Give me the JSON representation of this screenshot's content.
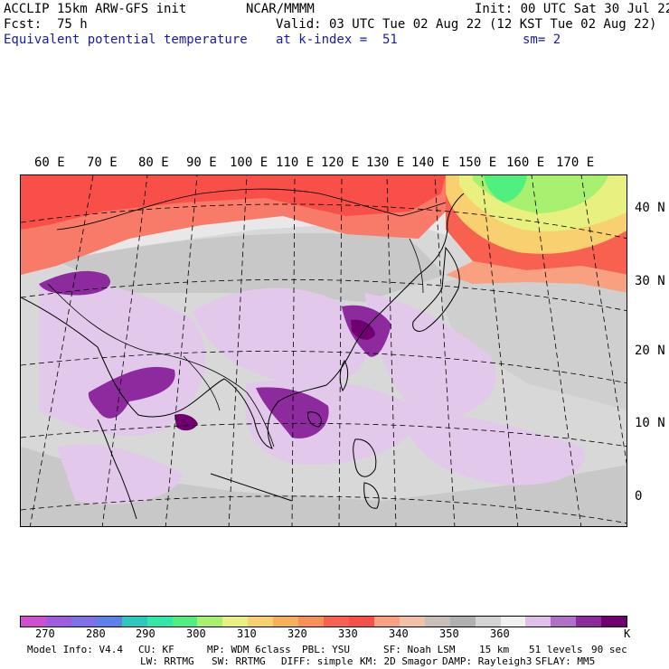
{
  "header": {
    "model_line": "ACCLIP 15km ARW-GFS init",
    "center_line": "NCAR/MMMM",
    "init_line": "Init: 00 UTC Sat 30 Jul 22",
    "fcst_line": "Fcst:  75 h",
    "valid_line": "Valid: 03 UTC Tue 02 Aug 22 (12 KST Tue 02 Aug 22)",
    "field_name": "Equivalent potential temperature",
    "level_line": "at k-index =  51",
    "smooth_line": "sm= 2"
  },
  "map": {
    "lon_labels": [
      "60 E",
      "70 E",
      "80 E",
      "90 E",
      "100 E",
      "110 E",
      "120 E",
      "130 E",
      "140 E",
      "150 E",
      "160 E",
      "170 E"
    ],
    "lat_labels": [
      "40 N",
      "30 N",
      "20 N",
      "10 N",
      "0"
    ]
  },
  "colorbar": {
    "colors": [
      "#d04ed0",
      "#a05ce0",
      "#7f70e8",
      "#5a82e8",
      "#2cc8c0",
      "#30e8a8",
      "#50f080",
      "#a8f070",
      "#e8f080",
      "#f8d070",
      "#f8b058",
      "#f89058",
      "#f86050",
      "#f85048",
      "#f8a080",
      "#f0c0a8",
      "#c8c0b8",
      "#b0b0b0",
      "#d4d4d4",
      "#f0f0f0",
      "#e0c0e8",
      "#b070c8",
      "#8c2a9e",
      "#700070"
    ],
    "labels": [
      "270",
      "280",
      "290",
      "300",
      "310",
      "320",
      "330",
      "340",
      "350",
      "360",
      "K"
    ]
  },
  "footer": {
    "line1": [
      "Model Info: V4.4",
      "CU: KF",
      "MP: WDM 6class",
      "PBL: YSU",
      "SF: Noah LSM",
      "15 km",
      "51 levels",
      "90 sec"
    ],
    "line2": [
      "LW: RRTMG",
      "SW: RRTMG",
      "DIFF: simple",
      "KM: 2D Smagor",
      "DAMP: Rayleigh3",
      "SFLAY: MM5"
    ]
  }
}
